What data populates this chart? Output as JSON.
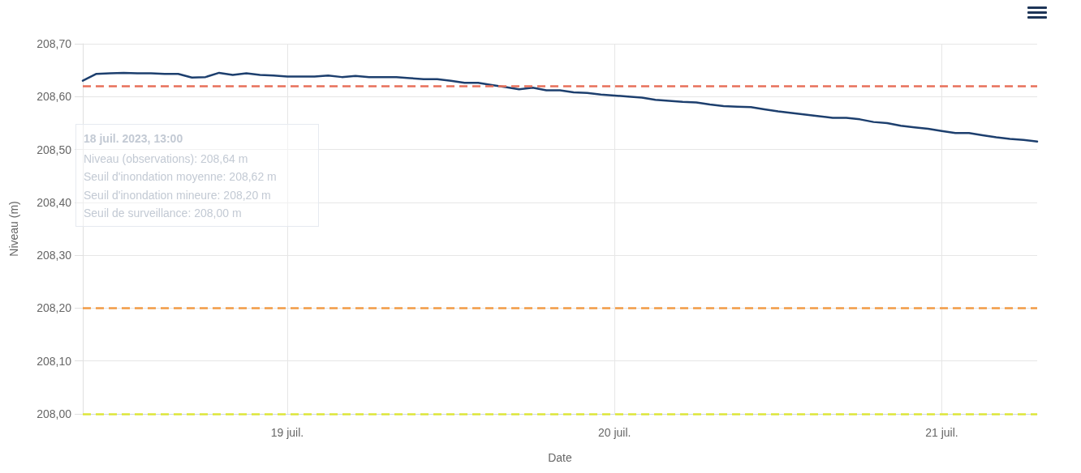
{
  "chart_data": {
    "type": "line",
    "xlabel": "Date",
    "ylabel": "Niveau (m)",
    "x": [
      "2023-07-18T09:00",
      "2023-07-18T10:00",
      "2023-07-18T11:00",
      "2023-07-18T12:00",
      "2023-07-18T13:00",
      "2023-07-18T14:00",
      "2023-07-18T15:00",
      "2023-07-18T16:00",
      "2023-07-18T17:00",
      "2023-07-18T18:00",
      "2023-07-18T19:00",
      "2023-07-18T20:00",
      "2023-07-18T21:00",
      "2023-07-18T22:00",
      "2023-07-18T23:00",
      "2023-07-19T00:00",
      "2023-07-19T01:00",
      "2023-07-19T02:00",
      "2023-07-19T03:00",
      "2023-07-19T04:00",
      "2023-07-19T05:00",
      "2023-07-19T06:00",
      "2023-07-19T07:00",
      "2023-07-19T08:00",
      "2023-07-19T09:00",
      "2023-07-19T10:00",
      "2023-07-19T11:00",
      "2023-07-19T12:00",
      "2023-07-19T13:00",
      "2023-07-19T14:00",
      "2023-07-19T15:00",
      "2023-07-19T16:00",
      "2023-07-19T17:00",
      "2023-07-19T18:00",
      "2023-07-19T19:00",
      "2023-07-19T20:00",
      "2023-07-19T21:00",
      "2023-07-19T22:00",
      "2023-07-19T23:00",
      "2023-07-20T00:00",
      "2023-07-20T01:00",
      "2023-07-20T02:00",
      "2023-07-20T03:00",
      "2023-07-20T04:00",
      "2023-07-20T05:00",
      "2023-07-20T06:00",
      "2023-07-20T07:00",
      "2023-07-20T08:00",
      "2023-07-20T09:00",
      "2023-07-20T10:00",
      "2023-07-20T11:00",
      "2023-07-20T12:00",
      "2023-07-20T13:00",
      "2023-07-20T14:00",
      "2023-07-20T15:00",
      "2023-07-20T16:00",
      "2023-07-20T17:00",
      "2023-07-20T18:00",
      "2023-07-20T19:00",
      "2023-07-20T20:00",
      "2023-07-20T21:00",
      "2023-07-20T22:00",
      "2023-07-20T23:00",
      "2023-07-21T00:00",
      "2023-07-21T01:00",
      "2023-07-21T02:00",
      "2023-07-21T03:00",
      "2023-07-21T04:00",
      "2023-07-21T05:00",
      "2023-07-21T06:00",
      "2023-07-21T07:00"
    ],
    "values": [
      208.63,
      208.643,
      208.644,
      208.645,
      208.644,
      208.644,
      208.643,
      208.643,
      208.636,
      208.637,
      208.645,
      208.641,
      208.644,
      208.641,
      208.64,
      208.638,
      208.638,
      208.638,
      208.64,
      208.637,
      208.639,
      208.637,
      208.637,
      208.637,
      208.635,
      208.633,
      208.633,
      208.63,
      208.626,
      208.626,
      208.622,
      208.618,
      208.614,
      208.617,
      208.612,
      208.612,
      208.608,
      208.607,
      208.604,
      208.602,
      208.6,
      208.598,
      208.594,
      208.592,
      208.59,
      208.589,
      208.585,
      208.582,
      208.581,
      208.58,
      208.576,
      208.572,
      208.569,
      208.566,
      208.563,
      208.56,
      208.56,
      208.557,
      208.552,
      208.55,
      208.545,
      208.542,
      208.539,
      208.535,
      208.531,
      208.531,
      208.527,
      208.523,
      208.52,
      208.518,
      208.515
    ],
    "color": "#1d3f6e",
    "xlim": [
      "2023-07-18T09:00",
      "2023-07-21T07:00"
    ],
    "xticks": [
      {
        "value": "2023-07-19",
        "label": "19 juil."
      },
      {
        "value": "2023-07-20",
        "label": "20 juil."
      },
      {
        "value": "2023-07-21",
        "label": "21 juil."
      }
    ],
    "ylim": [
      208.0,
      208.7
    ],
    "yticks": [
      {
        "value": 208.0,
        "label": "208,00"
      },
      {
        "value": 208.1,
        "label": "208,10"
      },
      {
        "value": 208.2,
        "label": "208,20"
      },
      {
        "value": 208.3,
        "label": "208,30"
      },
      {
        "value": 208.4,
        "label": "208,40"
      },
      {
        "value": 208.5,
        "label": "208,50"
      },
      {
        "value": 208.6,
        "label": "208,60"
      },
      {
        "value": 208.7,
        "label": "208,70"
      }
    ],
    "ref_lines": [
      {
        "axis": "y",
        "value": 208.62,
        "color": "#e8705a",
        "line_style": "dashed"
      },
      {
        "axis": "y",
        "value": 208.2,
        "color": "#f29b45",
        "line_style": "dashed"
      },
      {
        "axis": "y",
        "value": 208.0,
        "color": "#dde63a",
        "line_style": "dashed"
      }
    ],
    "annotations": [
      "18 juil. 2023, 13:00",
      "Niveau (observations): 208,64 m",
      "Seuil d'inondation moyenne: 208,62 m",
      "Seuil d'inondation mineure: 208,20 m",
      "Seuil de surveillance: 208,00 m"
    ],
    "grid": true
  }
}
